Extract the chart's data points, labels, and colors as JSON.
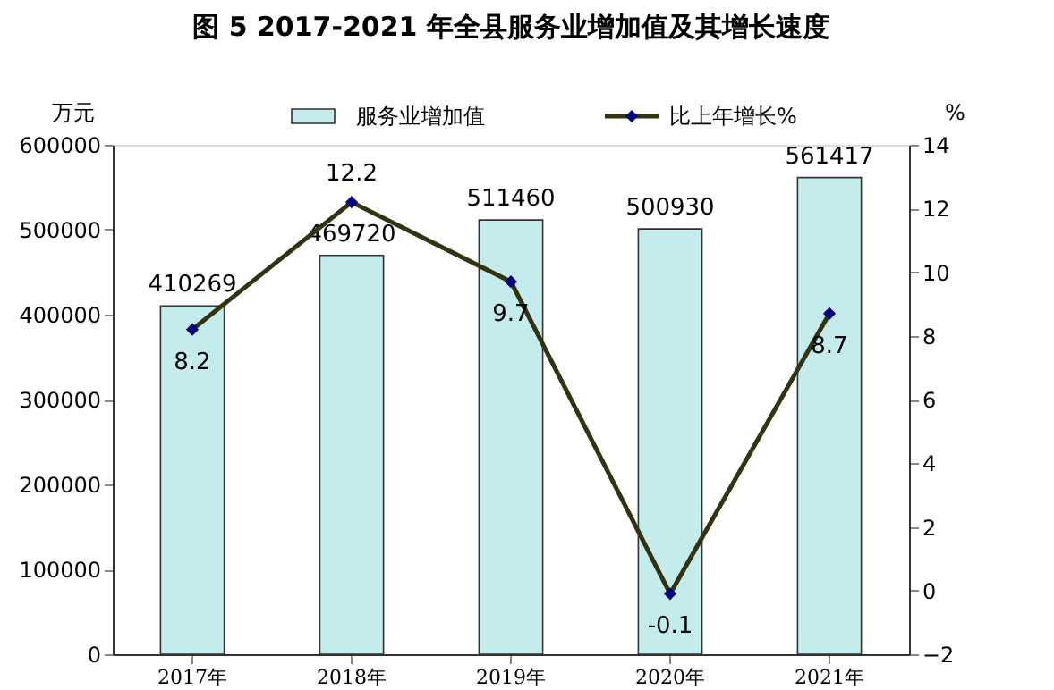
{
  "chart_data": {
    "type": "bar",
    "title": "图 5  2017-2021 年全县服务业增加值及其增长速度",
    "categories": [
      "2017年",
      "2018年",
      "2019年",
      "2020年",
      "2021年"
    ],
    "series": [
      {
        "name": "服务业增加值",
        "color": "#c4ecec",
        "values": [
          410269,
          469720,
          511460,
          500930,
          561417
        ]
      },
      {
        "name": "比上年增长%",
        "type": "line",
        "axis": "y2",
        "color": "#333311",
        "marker": "diamond",
        "values": [
          8.2,
          12.2,
          9.7,
          -0.1,
          8.7
        ]
      }
    ],
    "ylabel": "万元",
    "y2label": "%",
    "ylim": [
      0,
      600000
    ],
    "yticks": [
      0,
      100000,
      200000,
      300000,
      400000,
      500000,
      600000
    ],
    "y2lim": [
      -2,
      14
    ],
    "y2ticks": [
      -2,
      0,
      2,
      4,
      6,
      8,
      10,
      12,
      14
    ],
    "data_labels": true,
    "grid": false,
    "legend": "top"
  }
}
